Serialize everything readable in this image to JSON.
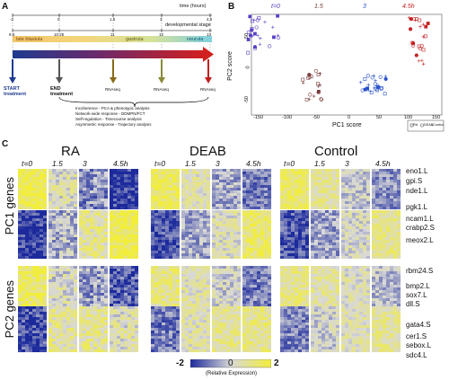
{
  "panels": {
    "a": "A",
    "b": "B",
    "c": "C"
  },
  "panel_a": {
    "time_label": "time (hours)",
    "time_ticks": [
      "-2",
      "0",
      "1.5",
      "3",
      "4.5"
    ],
    "stage_label": "developmental stage",
    "stage_ticks": [
      "9.5",
      "10.25",
      "11",
      "12",
      "13"
    ],
    "phases": [
      "late blastula",
      "gastrula",
      "neurula"
    ],
    "start_label": "START treatment",
    "end_label": "END treatment",
    "rnaseq_label": "RNAseq",
    "analyses": [
      "Incoherence - PCA & phenotypic analysis",
      "Network-wide response - DDMPN/FCT",
      "Self-regulation - Timecourse analysis",
      "Asymmetric response - Trajectory analysis"
    ]
  },
  "panel_b": {
    "timepoints": [
      "t=0",
      "1.5",
      "3",
      "4.5h"
    ],
    "xlabel": "PC1 score",
    "ylabel": "PC2 score",
    "xticks": [
      "-150",
      "-100",
      "-50",
      "0",
      "50",
      "100",
      "150"
    ],
    "yticks": [
      "50",
      "0",
      "-50"
    ],
    "legend": [
      "RA",
      "DEAB",
      "Control"
    ],
    "colors": {
      "t0": "#5b3fc4",
      "t15": "#7a3a3a",
      "t3": "#2a52c9",
      "t45": "#c42222"
    }
  },
  "panel_c": {
    "conditions": [
      "RA",
      "DEAB",
      "Control"
    ],
    "timepoints": [
      "t=0",
      "1.5",
      "3",
      "4.5h"
    ],
    "pc1_label": "PC1 genes",
    "pc2_label": "PC2 genes",
    "pc1_genes": [
      "eno1.L",
      "gpi.S",
      "nde1.L",
      "pgk1.L",
      "ncam1.L",
      "crabp2.S",
      "meox2.L"
    ],
    "pc2_genes": [
      "rbm24.S",
      "bmp2.L",
      "sox7.L",
      "dll.S",
      "gata4.S",
      "cer1.S",
      "sebox.L",
      "sdc4.L"
    ],
    "colorbar": {
      "min": "-2",
      "mid": "0",
      "max": "2",
      "label": "(Relative Expression)"
    },
    "colors": {
      "low": "#1c2a9c",
      "mid": "#d8d8d8",
      "high": "#f2ee3a"
    }
  }
}
